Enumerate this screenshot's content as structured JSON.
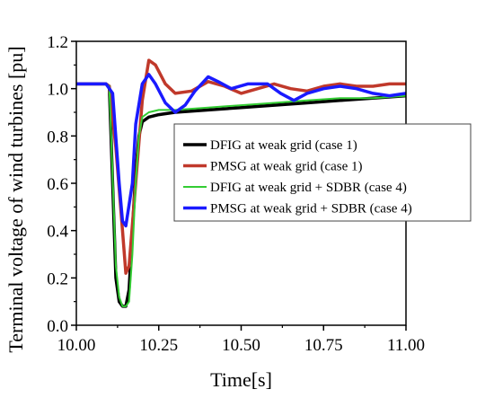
{
  "chart_data": {
    "type": "line",
    "title": "",
    "xlabel": "Time[s]",
    "ylabel": "Terminal voltage of wind turbines [pu]",
    "xlim": [
      10.0,
      11.0
    ],
    "ylim": [
      0.0,
      1.2
    ],
    "xticks": [
      10.0,
      10.25,
      10.5,
      10.75,
      11.0
    ],
    "xtick_labels": [
      "10.00",
      "10.25",
      "10.50",
      "10.75",
      "11.00"
    ],
    "yticks": [
      0.0,
      0.2,
      0.4,
      0.6,
      0.8,
      1.0,
      1.2
    ],
    "ytick_labels": [
      "0.0",
      "0.2",
      "0.4",
      "0.6",
      "0.8",
      "1.0",
      "1.2"
    ],
    "grid": false,
    "legend_position": "center-right",
    "series": [
      {
        "name": "DFIG at weak grid (case 1)",
        "color": "#000000",
        "x": [
          10.0,
          10.09,
          10.1,
          10.11,
          10.12,
          10.13,
          10.14,
          10.15,
          10.16,
          10.17,
          10.18,
          10.19,
          10.2,
          10.22,
          10.25,
          10.3,
          10.4,
          10.5,
          10.6,
          10.7,
          10.8,
          10.9,
          11.0
        ],
        "y": [
          1.02,
          1.02,
          1.01,
          0.6,
          0.2,
          0.1,
          0.08,
          0.08,
          0.15,
          0.4,
          0.65,
          0.8,
          0.86,
          0.88,
          0.89,
          0.9,
          0.91,
          0.92,
          0.93,
          0.94,
          0.95,
          0.96,
          0.97
        ]
      },
      {
        "name": "PMSG at weak grid (case 1)",
        "color": "#c0392b",
        "x": [
          10.0,
          10.09,
          10.1,
          10.12,
          10.14,
          10.15,
          10.16,
          10.18,
          10.2,
          10.22,
          10.24,
          10.27,
          10.3,
          10.35,
          10.4,
          10.45,
          10.5,
          10.55,
          10.6,
          10.65,
          10.7,
          10.75,
          10.8,
          10.85,
          10.9,
          10.95,
          11.0
        ],
        "y": [
          1.02,
          1.02,
          1.01,
          0.75,
          0.4,
          0.22,
          0.25,
          0.6,
          0.95,
          1.12,
          1.1,
          1.02,
          0.98,
          0.99,
          1.03,
          1.01,
          0.98,
          1.0,
          1.02,
          1.0,
          0.99,
          1.01,
          1.02,
          1.01,
          1.01,
          1.02,
          1.02
        ]
      },
      {
        "name": "DFIG at weak grid + SDBR (case 4)",
        "color": "#33cc33",
        "x": [
          10.0,
          10.09,
          10.1,
          10.12,
          10.13,
          10.14,
          10.15,
          10.16,
          10.17,
          10.18,
          10.19,
          10.2,
          10.22,
          10.25,
          10.3,
          10.4,
          10.5,
          10.6,
          10.7,
          10.8,
          10.9,
          11.0
        ],
        "y": [
          1.02,
          1.02,
          1.01,
          0.25,
          0.12,
          0.08,
          0.08,
          0.1,
          0.3,
          0.6,
          0.8,
          0.88,
          0.9,
          0.91,
          0.91,
          0.92,
          0.93,
          0.94,
          0.95,
          0.96,
          0.96,
          0.97
        ]
      },
      {
        "name": "PMSG at weak grid + SDBR (case 4)",
        "color": "#1a1aff",
        "x": [
          10.0,
          10.09,
          10.11,
          10.13,
          10.14,
          10.15,
          10.17,
          10.18,
          10.2,
          10.22,
          10.24,
          10.27,
          10.3,
          10.33,
          10.36,
          10.4,
          10.43,
          10.47,
          10.52,
          10.58,
          10.62,
          10.66,
          10.7,
          10.75,
          10.8,
          10.85,
          10.9,
          10.95,
          11.0
        ],
        "y": [
          1.02,
          1.02,
          0.98,
          0.6,
          0.44,
          0.42,
          0.6,
          0.85,
          1.02,
          1.06,
          1.02,
          0.94,
          0.9,
          0.93,
          0.99,
          1.05,
          1.03,
          1.0,
          1.02,
          1.02,
          0.98,
          0.95,
          0.98,
          1.0,
          1.01,
          1.0,
          0.98,
          0.97,
          0.98
        ]
      }
    ]
  }
}
